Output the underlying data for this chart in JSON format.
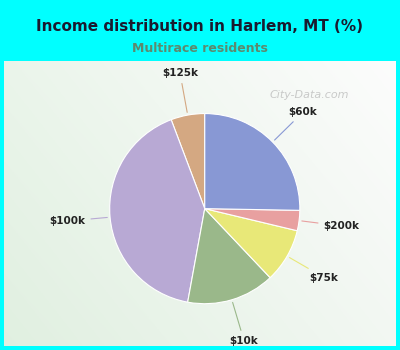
{
  "title": "Income distribution in Harlem, MT (%)",
  "subtitle": "Multirace residents",
  "title_color": "#1a1a2e",
  "subtitle_color": "#5c8a6e",
  "background_outer": "#00ffff",
  "labels": [
    "$125k",
    "$100k",
    "$10k",
    "$75k",
    "$200k",
    "$60k"
  ],
  "sizes": [
    5.0,
    36.0,
    13.0,
    8.0,
    3.0,
    22.0
  ],
  "colors": [
    "#d4a882",
    "#b8a9d4",
    "#9ab88a",
    "#e8e878",
    "#e8a0a0",
    "#8898d4"
  ],
  "startangle": 90,
  "watermark": "City-Data.com"
}
